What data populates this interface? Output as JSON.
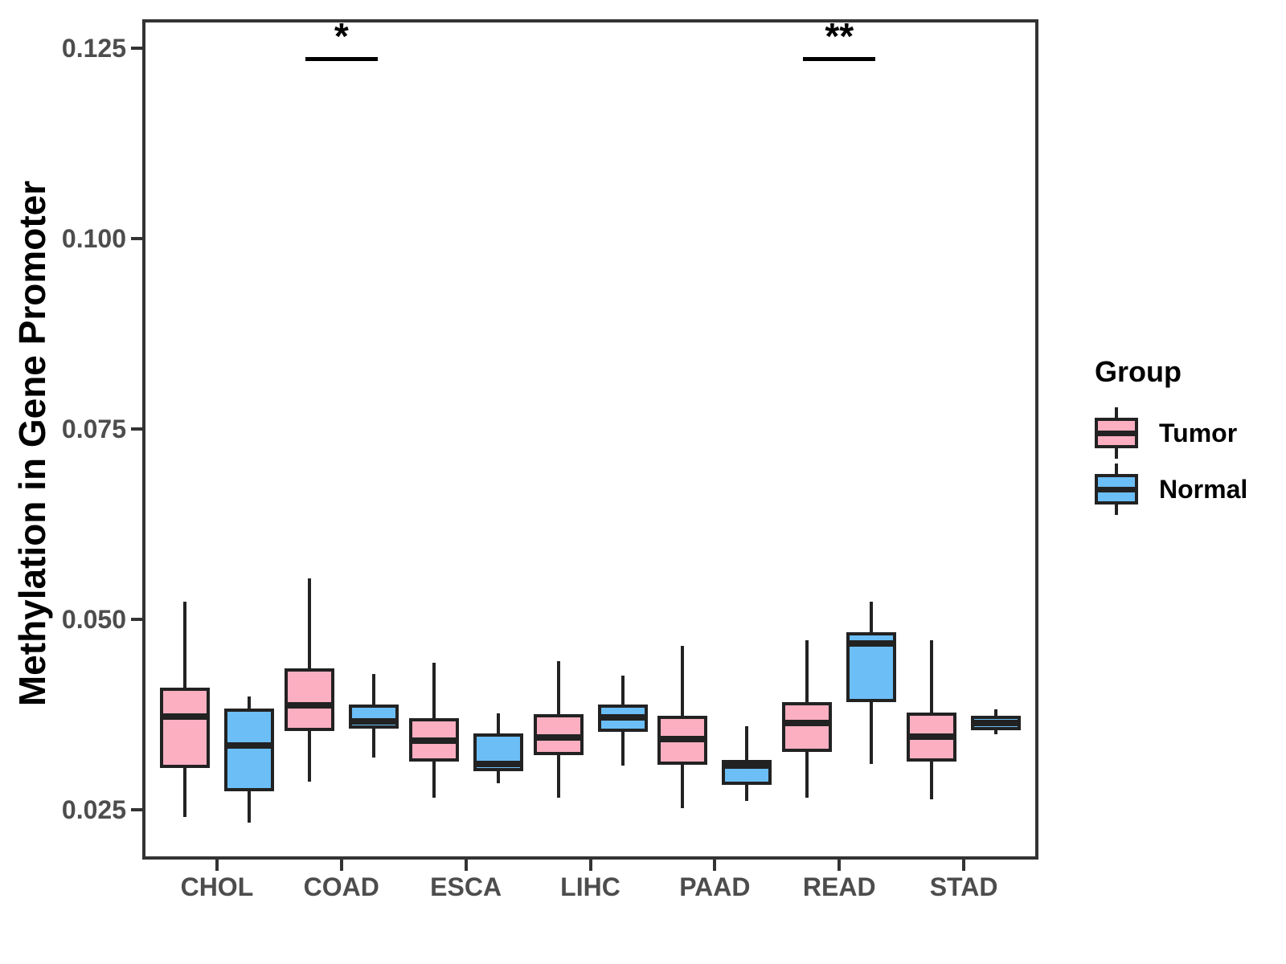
{
  "page": {
    "background": "#FFFFFF"
  },
  "chart_data": {
    "type": "boxplot",
    "title": "",
    "xlabel": "",
    "ylabel": "Methylation in Gene Promoter",
    "categories": [
      "CHOL",
      "COAD",
      "ESCA",
      "LIHC",
      "PAAD",
      "READ",
      "STAD"
    ],
    "groups": [
      "Tumor",
      "Normal"
    ],
    "group_colors": {
      "Tumor": "#FBAFC1",
      "Normal": "#6CBEF6"
    },
    "box_edge_color": "#222222",
    "grid": false,
    "legend_position": "right",
    "ylim": [
      0.0185,
      0.1288
    ],
    "yticks": {
      "values": [
        0.125,
        0.1,
        0.075,
        0.05,
        0.025
      ],
      "labels": [
        "0.125",
        "0.100",
        "0.075",
        "0.050",
        "0.025"
      ]
    },
    "series": [
      {
        "name": "Tumor",
        "stats": [
          {
            "category": "CHOL",
            "whisker_low": 0.0241,
            "q1": 0.0305,
            "median": 0.0373,
            "q3": 0.0411,
            "whisker_high": 0.0523
          },
          {
            "category": "COAD",
            "whisker_low": 0.0287,
            "q1": 0.0354,
            "median": 0.0387,
            "q3": 0.0436,
            "whisker_high": 0.0554
          },
          {
            "category": "ESCA",
            "whisker_low": 0.0266,
            "q1": 0.0314,
            "median": 0.0341,
            "q3": 0.0371,
            "whisker_high": 0.0443
          },
          {
            "category": "LIHC",
            "whisker_low": 0.0266,
            "q1": 0.0322,
            "median": 0.0345,
            "q3": 0.0376,
            "whisker_high": 0.0445
          },
          {
            "category": "PAAD",
            "whisker_low": 0.0253,
            "q1": 0.0309,
            "median": 0.0343,
            "q3": 0.0374,
            "whisker_high": 0.0466
          },
          {
            "category": "READ",
            "whisker_low": 0.0266,
            "q1": 0.0326,
            "median": 0.0364,
            "q3": 0.0392,
            "whisker_high": 0.0473
          },
          {
            "category": "STAD",
            "whisker_low": 0.0264,
            "q1": 0.0314,
            "median": 0.0346,
            "q3": 0.0378,
            "whisker_high": 0.0473
          }
        ]
      },
      {
        "name": "Normal",
        "stats": [
          {
            "category": "CHOL",
            "whisker_low": 0.0234,
            "q1": 0.0275,
            "median": 0.0335,
            "q3": 0.0383,
            "whisker_high": 0.0399
          },
          {
            "category": "COAD",
            "whisker_low": 0.0319,
            "q1": 0.0357,
            "median": 0.0366,
            "q3": 0.0389,
            "whisker_high": 0.0429
          },
          {
            "category": "ESCA",
            "whisker_low": 0.0285,
            "q1": 0.0301,
            "median": 0.0311,
            "q3": 0.0351,
            "whisker_high": 0.0377
          },
          {
            "category": "LIHC",
            "whisker_low": 0.0308,
            "q1": 0.0353,
            "median": 0.0372,
            "q3": 0.0388,
            "whisker_high": 0.0427
          },
          {
            "category": "PAAD",
            "whisker_low": 0.0262,
            "q1": 0.0283,
            "median": 0.0308,
            "q3": 0.0316,
            "whisker_high": 0.036
          },
          {
            "category": "READ",
            "whisker_low": 0.0311,
            "q1": 0.0392,
            "median": 0.0469,
            "q3": 0.0483,
            "whisker_high": 0.0524
          },
          {
            "category": "STAD",
            "whisker_low": 0.0349,
            "q1": 0.0355,
            "median": 0.0364,
            "q3": 0.0374,
            "whisker_high": 0.0382
          }
        ]
      }
    ],
    "significance": [
      {
        "category": "COAD",
        "label": "*",
        "bar_y": 0.1236
      },
      {
        "category": "READ",
        "label": "**",
        "bar_y": 0.1236
      }
    ]
  },
  "legend": {
    "title": "Group",
    "items": [
      {
        "label": "Tumor",
        "color": "#FBAFC1"
      },
      {
        "label": "Normal",
        "color": "#6CBEF6"
      }
    ]
  }
}
